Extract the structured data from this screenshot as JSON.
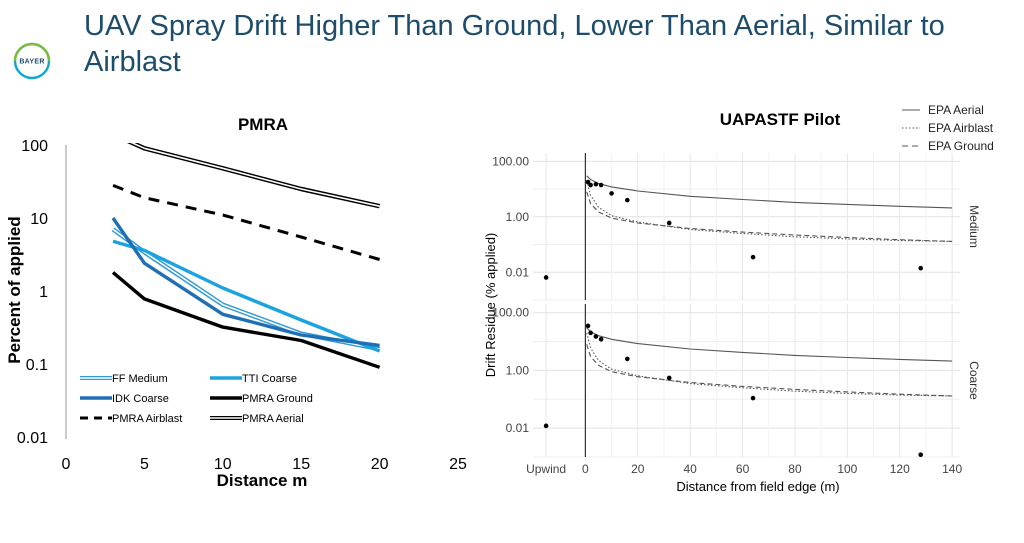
{
  "slide": {
    "title": "UAV Spray Drift Higher Than Ground, Lower Than Aerial, Similar to Airblast",
    "logo_text": "BAYER",
    "colors": {
      "title": "#1d4d6b",
      "logo_blue": "#10a6d8",
      "logo_green": "#7dba3e"
    }
  },
  "chart_data": [
    {
      "type": "line",
      "title": "PMRA",
      "xlabel": "Distance m",
      "ylabel": "Percent of applied",
      "xlim": [
        0,
        25
      ],
      "x_ticks": [
        0,
        5,
        10,
        15,
        20,
        25
      ],
      "y_scale": "log",
      "ylim": [
        0.01,
        100
      ],
      "y_ticks": [
        {
          "value": 100,
          "label": "100"
        },
        {
          "value": 10,
          "label": "10"
        },
        {
          "value": 1,
          "label": "1"
        },
        {
          "value": 0.1,
          "label": "0.1"
        },
        {
          "value": 0.01,
          "label": "0.01"
        }
      ],
      "grid": false,
      "legend_position": "bottom-left",
      "series": [
        {
          "name": "FF Medium",
          "color": "#2e9ad6",
          "style": "double",
          "x": [
            3,
            5,
            10,
            15,
            20
          ],
          "y": [
            7.0,
            3.4,
            0.65,
            0.26,
            0.16
          ]
        },
        {
          "name": "TTI Coarse",
          "color": "#1aa3e0",
          "style": "thick",
          "x": [
            3,
            5,
            10,
            15,
            20
          ],
          "y": [
            4.8,
            3.6,
            1.1,
            0.4,
            0.15
          ]
        },
        {
          "name": "IDK Coarse",
          "color": "#1f6fb5",
          "style": "thick",
          "x": [
            3,
            5,
            10,
            15,
            20
          ],
          "y": [
            10.0,
            2.4,
            0.48,
            0.25,
            0.18
          ]
        },
        {
          "name": "PMRA Ground",
          "color": "#000000",
          "style": "thick",
          "x": [
            3,
            5,
            10,
            15,
            20
          ],
          "y": [
            1.8,
            0.78,
            0.32,
            0.21,
            0.09
          ]
        },
        {
          "name": "PMRA Airblast",
          "color": "#000000",
          "style": "dashed",
          "x": [
            3,
            5,
            10,
            15,
            20
          ],
          "y": [
            28,
            19,
            11,
            5.5,
            2.7
          ]
        },
        {
          "name": "PMRA Aerial",
          "color": "#000000",
          "style": "double",
          "x": [
            3,
            5,
            10,
            15,
            20
          ],
          "y": [
            140,
            90,
            48,
            25,
            14.5
          ]
        }
      ]
    },
    {
      "type": "scatter",
      "title": "UAPASTF Pilot",
      "xlabel": "Distance from field edge (m)",
      "ylabel": "Drift Residue (% applied)",
      "x_ticks": [
        {
          "value": -15,
          "label": "Upwind"
        },
        {
          "value": 0,
          "label": "0"
        },
        {
          "value": 20,
          "label": "20"
        },
        {
          "value": 40,
          "label": "40"
        },
        {
          "value": 60,
          "label": "60"
        },
        {
          "value": 80,
          "label": "80"
        },
        {
          "value": 100,
          "label": "100"
        },
        {
          "value": 120,
          "label": "120"
        },
        {
          "value": 140,
          "label": "140"
        }
      ],
      "xlim": [
        -20,
        143
      ],
      "y_scale": "log",
      "ylim": [
        0.001,
        200
      ],
      "y_ticks": [
        {
          "value": 100,
          "label": "100.00"
        },
        {
          "value": 1,
          "label": "1.00"
        },
        {
          "value": 0.01,
          "label": "0.01"
        }
      ],
      "grid": true,
      "legend_position": "top-right",
      "legend": [
        {
          "name": "EPA Aerial",
          "style": "solid"
        },
        {
          "name": "EPA Airblast",
          "style": "dotted"
        },
        {
          "name": "EPA Ground",
          "style": "dashed"
        }
      ],
      "panels": [
        {
          "name": "Medium",
          "points": [
            {
              "x": -15,
              "y": 0.0065
            },
            {
              "x": 1,
              "y": 18
            },
            {
              "x": 2,
              "y": 14
            },
            {
              "x": 4,
              "y": 15
            },
            {
              "x": 6,
              "y": 14
            },
            {
              "x": 10,
              "y": 7
            },
            {
              "x": 16,
              "y": 4
            },
            {
              "x": 32,
              "y": 0.6
            },
            {
              "x": 64,
              "y": 0.035
            },
            {
              "x": 128,
              "y": 0.014
            }
          ],
          "curves": [
            {
              "name": "EPA Aerial",
              "x": [
                0.5,
                2,
                5,
                10,
                20,
                40,
                60,
                80,
                100,
                120,
                140
              ],
              "y": [
                30,
                22,
                16,
                12,
                8.5,
                5.5,
                4.2,
                3.3,
                2.8,
                2.4,
                2.1
              ]
            },
            {
              "name": "EPA Airblast",
              "x": [
                0.5,
                2,
                5,
                10,
                20,
                40,
                60,
                80,
                100,
                120,
                140
              ],
              "y": [
                20,
                6,
                2.2,
                1.1,
                0.65,
                0.35,
                0.25,
                0.19,
                0.16,
                0.14,
                0.13
              ]
            },
            {
              "name": "EPA Ground",
              "x": [
                0.5,
                2,
                5,
                10,
                20,
                40,
                60,
                80,
                100,
                120,
                140
              ],
              "y": [
                8,
                3,
                1.5,
                0.9,
                0.6,
                0.38,
                0.28,
                0.22,
                0.18,
                0.15,
                0.13
              ]
            }
          ]
        },
        {
          "name": "Coarse",
          "points": [
            {
              "x": -15,
              "y": 0.012
            },
            {
              "x": 1,
              "y": 35
            },
            {
              "x": 2,
              "y": 20
            },
            {
              "x": 4,
              "y": 15
            },
            {
              "x": 6,
              "y": 12
            },
            {
              "x": 16,
              "y": 2.5
            },
            {
              "x": 32,
              "y": 0.55
            },
            {
              "x": 64,
              "y": 0.11
            },
            {
              "x": 128,
              "y": 0.0012
            }
          ],
          "curves": [
            {
              "name": "EPA Aerial",
              "x": [
                0.5,
                2,
                5,
                10,
                20,
                40,
                60,
                80,
                100,
                120,
                140
              ],
              "y": [
                30,
                22,
                16,
                12,
                8.5,
                5.5,
                4.2,
                3.3,
                2.8,
                2.4,
                2.1
              ]
            },
            {
              "name": "EPA Airblast",
              "x": [
                0.5,
                2,
                5,
                10,
                20,
                40,
                60,
                80,
                100,
                120,
                140
              ],
              "y": [
                20,
                6,
                2.2,
                1.1,
                0.65,
                0.35,
                0.25,
                0.19,
                0.16,
                0.14,
                0.13
              ]
            },
            {
              "name": "EPA Ground",
              "x": [
                0.5,
                2,
                5,
                10,
                20,
                40,
                60,
                80,
                100,
                120,
                140
              ],
              "y": [
                8,
                3,
                1.5,
                0.9,
                0.6,
                0.38,
                0.28,
                0.22,
                0.18,
                0.15,
                0.13
              ]
            }
          ]
        }
      ]
    }
  ]
}
